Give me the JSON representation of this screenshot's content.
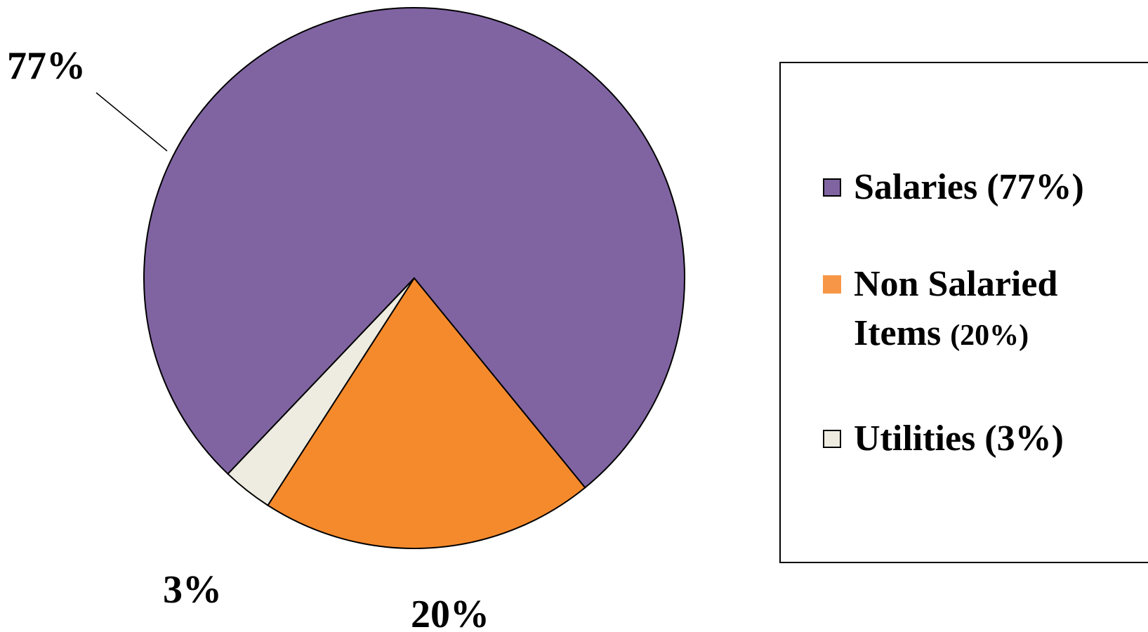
{
  "chart_data": {
    "type": "pie",
    "slices": [
      {
        "label": "Salaries (77%)",
        "value": 77,
        "data_label": "77%",
        "color": "#8064A2"
      },
      {
        "label": "Non Salaried Items (20%)",
        "value": 20,
        "data_label": "20%",
        "color": "#F58A2C"
      },
      {
        "label": "Utilities (3%)",
        "value": 3,
        "data_label": "3%",
        "color": "#EEEBE0"
      }
    ],
    "legend": {
      "placement": "right",
      "items": [
        {
          "line1": "Salaries (77%)",
          "line2": "",
          "line2_small": "",
          "color": "#8064A2",
          "bordered": true
        },
        {
          "line1": "Non Salaried",
          "line2": "Items ",
          "line2_small": "(20%)",
          "color": "#F79646",
          "bordered": false
        },
        {
          "line1": "Utilities (3%)",
          "line2": "",
          "line2_small": "",
          "color": "#EEEBE0",
          "bordered": true
        }
      ]
    },
    "slice_border_color": "#000000"
  }
}
